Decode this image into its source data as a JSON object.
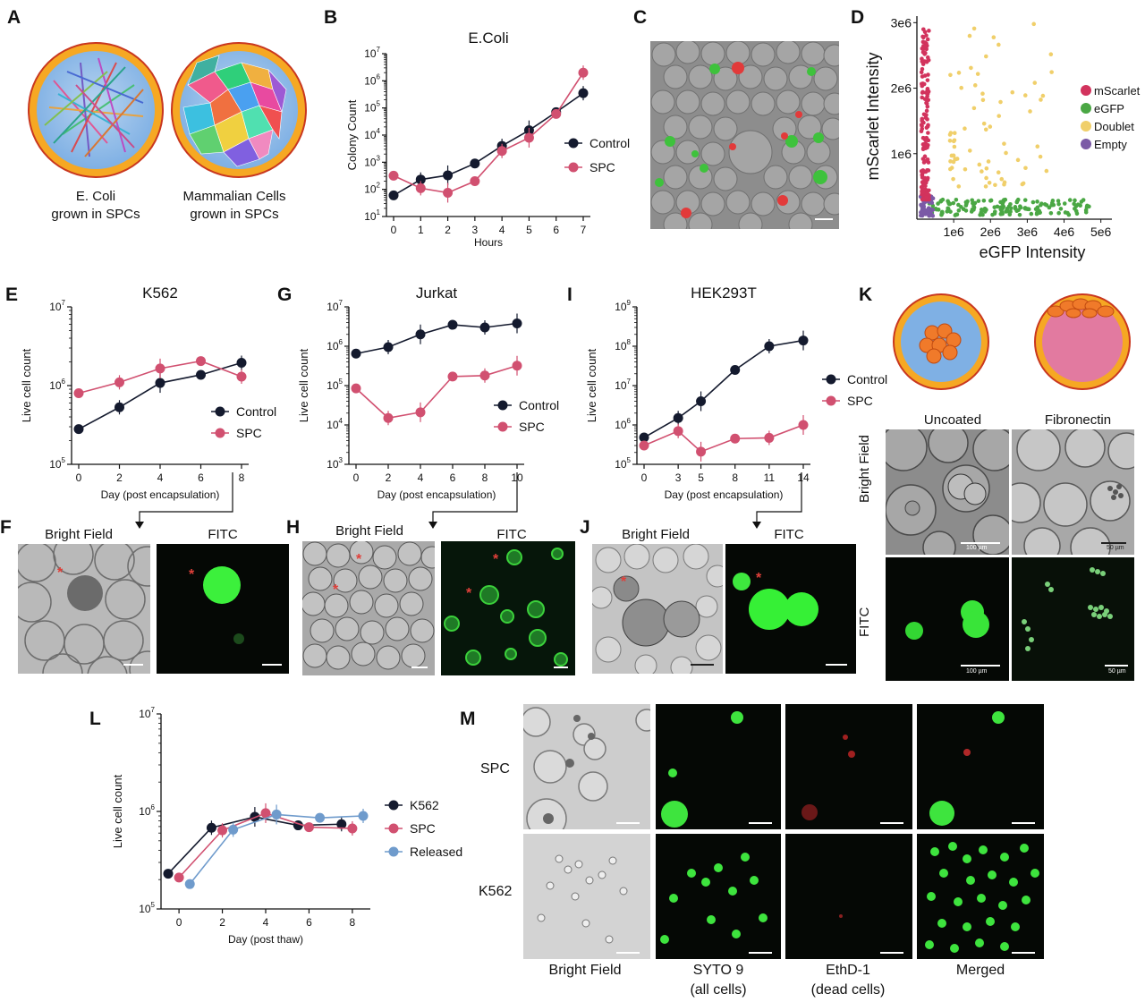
{
  "panels": {
    "A": "A",
    "B": "B",
    "C": "C",
    "D": "D",
    "E": "E",
    "F": "F",
    "G": "G",
    "H": "H",
    "I": "I",
    "J": "J",
    "K": "K",
    "L": "L",
    "M": "M"
  },
  "panelA": {
    "label1_line1": "E. Coli",
    "label1_line2": "grown in SPCs",
    "label2_line1": "Mammalian Cells",
    "label2_line2": "grown in SPCs"
  },
  "panelF": {
    "bf": "Bright Field",
    "fitc": "FITC"
  },
  "panelH": {
    "bf": "Bright Field",
    "fitc": "FITC"
  },
  "panelJ": {
    "bf": "Bright Field",
    "fitc": "FITC"
  },
  "panelK": {
    "uncoated": "Uncoated",
    "fibronectin": "Fibronectin",
    "row1": "Bright Field",
    "row2": "FITC",
    "scale100a": "100 µm",
    "scale50a": "50 µm",
    "scale100b": "100 µm",
    "scale50b": "50 µm"
  },
  "panelM": {
    "row1": "SPC",
    "row2": "K562",
    "col1": "Bright Field",
    "col2_line1": "SYTO 9",
    "col2_line2": "(all cells)",
    "col3_line1": "EthD-1",
    "col3_line2": "(dead cells)",
    "col4": "Merged"
  },
  "colors": {
    "control": "#141a2e",
    "spc": "#d15070",
    "released": "#6f9bcc",
    "mscarlet": "#d2335d",
    "egfp": "#4aa744",
    "doublet": "#f0cf6a",
    "empty": "#7b5aa6"
  },
  "chart_data": [
    {
      "id": "B",
      "type": "line",
      "title": "E.Coli",
      "xlabel": "Hours",
      "ylabel": "Colony Count",
      "scale": "log",
      "ylim": [
        10,
        10000000
      ],
      "yticks": [
        "10^1",
        "10^2",
        "10^3",
        "10^4",
        "10^5",
        "10^6",
        "10^7"
      ],
      "x": [
        0,
        1,
        2,
        3,
        4,
        5,
        6,
        7
      ],
      "series": [
        {
          "name": "Control",
          "values": [
            60,
            230,
            330,
            900,
            4000,
            15000,
            70000,
            350000
          ]
        },
        {
          "name": "SPC",
          "values": [
            320,
            110,
            75,
            200,
            2600,
            8000,
            60000,
            2000000
          ]
        }
      ],
      "legend": "right"
    },
    {
      "id": "D",
      "type": "scatter",
      "xlabel": "eGFP Intensity",
      "ylabel": "mScarlet Intensity",
      "xticks": [
        "1e6",
        "2e6",
        "3e6",
        "4e6",
        "5e6"
      ],
      "yticks": [
        "1e6",
        "2e6",
        "3e6"
      ],
      "xlim": [
        0,
        5300000
      ],
      "ylim": [
        0,
        3100000
      ],
      "series": [
        {
          "name": "mScarlet",
          "region": "x 0.1e6–0.35e6, y 0.3e6–2.95e6"
        },
        {
          "name": "eGFP",
          "region": "x 0.3e6–4.8e6, y 0.05e6–0.3e6"
        },
        {
          "name": "Doublet",
          "region": "x 0.9e6–3.8e6, y 0.5e6–3.0e6"
        },
        {
          "name": "Empty",
          "region": "x 0.1e6–0.4e6, y 0–0.35e6"
        }
      ],
      "legend": "right"
    },
    {
      "id": "E",
      "type": "line",
      "title": "K562",
      "xlabel": "Day (post encapsulation)",
      "ylabel": "Live cell count",
      "scale": "log",
      "ylim": [
        100000,
        10000000
      ],
      "yticks": [
        "10^5",
        "10^6",
        "10^7"
      ],
      "x": [
        0,
        2,
        4,
        6,
        8
      ],
      "series": [
        {
          "name": "Control",
          "values": [
            280000,
            530000,
            1080000,
            1370000,
            1950000
          ]
        },
        {
          "name": "SPC",
          "values": [
            800000,
            1100000,
            1650000,
            2050000,
            1300000
          ]
        }
      ],
      "legend": "right"
    },
    {
      "id": "G",
      "type": "line",
      "title": "Jurkat",
      "xlabel": "Day (post encapsulation)",
      "ylabel": "Live cell count",
      "scale": "log",
      "ylim": [
        1000,
        10000000
      ],
      "yticks": [
        "10^3",
        "10^4",
        "10^5",
        "10^6",
        "10^7"
      ],
      "x": [
        0,
        2,
        4,
        6,
        8,
        10
      ],
      "series": [
        {
          "name": "Control",
          "values": [
            650000,
            950000,
            2000000,
            3500000,
            3000000,
            3800000
          ]
        },
        {
          "name": "SPC",
          "values": [
            85000,
            15000,
            21000,
            170000,
            180000,
            320000
          ]
        }
      ],
      "legend": "right"
    },
    {
      "id": "I",
      "type": "line",
      "title": "HEK293T",
      "xlabel": "Day (post encapsulation)",
      "ylabel": "Live cell count",
      "scale": "log",
      "ylim": [
        100000,
        1000000000
      ],
      "yticks": [
        "10^5",
        "10^6",
        "10^7",
        "10^8",
        "10^9"
      ],
      "x": [
        0,
        3,
        5,
        8,
        11,
        14
      ],
      "series": [
        {
          "name": "Control",
          "values": [
            480000,
            1500000,
            4000000,
            25000000,
            100000000,
            140000000
          ]
        },
        {
          "name": "SPC",
          "values": [
            300000,
            700000,
            210000,
            450000,
            470000,
            1000000
          ]
        }
      ],
      "legend": "right"
    },
    {
      "id": "L",
      "type": "line",
      "xlabel": "Day (post thaw)",
      "ylabel": "Live cell count",
      "scale": "log",
      "ylim": [
        100000,
        10000000
      ],
      "yticks": [
        "10^5",
        "10^6",
        "10^7"
      ],
      "series": [
        {
          "name": "K562",
          "x": [
            -0.5,
            1.5,
            3.5,
            5.5,
            7.5
          ],
          "values": [
            230000,
            680000,
            880000,
            720000,
            740000
          ]
        },
        {
          "name": "SPC",
          "x": [
            0,
            2,
            4,
            6,
            8
          ],
          "values": [
            210000,
            640000,
            960000,
            690000,
            670000
          ]
        },
        {
          "name": "Released",
          "x": [
            0.5,
            2.5,
            4.5,
            6.5,
            8.5
          ],
          "values": [
            180000,
            650000,
            930000,
            860000,
            900000
          ]
        }
      ],
      "legend": "right"
    }
  ]
}
